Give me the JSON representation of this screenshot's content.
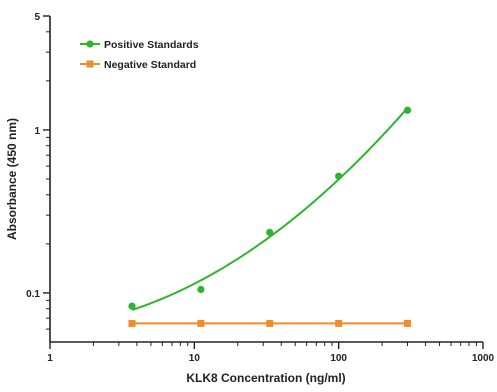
{
  "chart_data": {
    "type": "scatter",
    "xlabel": "KLK8 Concentration (ng/ml)",
    "ylabel": "Absorbance (450 nm)",
    "x_scale": "log",
    "y_scale": "log",
    "xlim": [
      1,
      1000
    ],
    "ylim": [
      0.05,
      5
    ],
    "x_ticks": [
      1,
      10,
      100,
      1000
    ],
    "x_tick_labels": [
      "1",
      "10",
      "100",
      "1000"
    ],
    "y_ticks": [
      0.1,
      1,
      5
    ],
    "y_tick_labels": [
      "0.1",
      "1",
      "5"
    ],
    "legend_position": "top-left",
    "series": [
      {
        "name": "Positive Standards",
        "marker": "circle",
        "color": "#2db52d",
        "fit_line": true,
        "x": [
          3.7,
          11.1,
          33.3,
          100,
          300
        ],
        "y": [
          0.083,
          0.105,
          0.235,
          0.52,
          1.32
        ]
      },
      {
        "name": "Negative Standard",
        "marker": "square",
        "color": "#f08c2a",
        "fit_line": true,
        "x": [
          3.7,
          11.1,
          33.3,
          100,
          300
        ],
        "y": [
          0.065,
          0.065,
          0.065,
          0.065,
          0.065
        ]
      }
    ]
  }
}
